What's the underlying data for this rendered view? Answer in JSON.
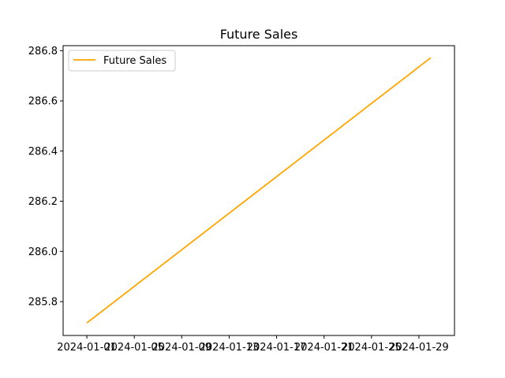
{
  "chart_data": {
    "type": "line",
    "title": "Future Sales",
    "xlabel": "",
    "ylabel": "",
    "x_ticks": [
      "2024-01-01",
      "2024-01-05",
      "2024-01-09",
      "2024-01-13",
      "2024-01-17",
      "2024-01-21",
      "2024-01-25",
      "2024-01-29"
    ],
    "y_ticks": [
      "285.8",
      "286.0",
      "286.2",
      "286.4",
      "286.6",
      "286.8"
    ],
    "xlim": [
      "2023-12-30",
      "2024-02-01"
    ],
    "ylim": [
      285.665,
      286.82
    ],
    "grid": false,
    "legend": {
      "position": "top-left",
      "entries": [
        "Future Sales"
      ]
    },
    "series": [
      {
        "name": "Future Sales",
        "color": "#ffa500",
        "x": [
          "2024-01-01",
          "2024-01-30"
        ],
        "y": [
          285.715,
          286.772
        ]
      }
    ]
  }
}
